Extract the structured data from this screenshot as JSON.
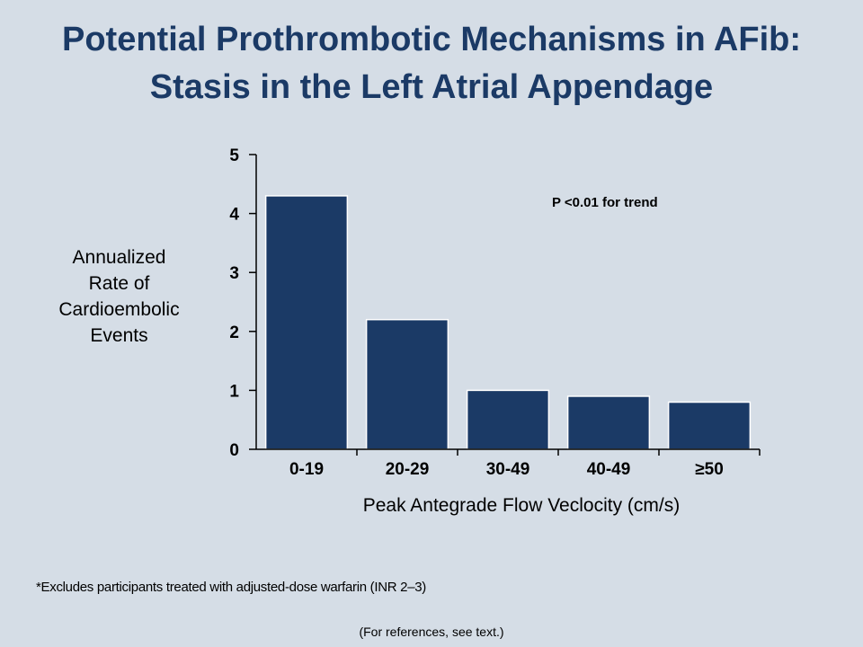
{
  "slide": {
    "title_line1": "Potential Prothrombotic Mechanisms in AFib:",
    "title_line2": "Stasis in the Left Atrial Appendage",
    "y_axis_label_lines": [
      "Annualized",
      "Rate of",
      "Cardioembolic",
      "Events"
    ],
    "x_axis_label": "Peak Antegrade Flow Veclocity (cm/s)",
    "annotation": "P <0.01 for trend",
    "footnote": "*Excludes participants treated with adjusted-dose warfarin (INR 2–3)",
    "references": "(For references, see text.)"
  },
  "chart_data": {
    "type": "bar",
    "categories": [
      "0-19",
      "20-29",
      "30-49",
      "40-49",
      "≥50"
    ],
    "values": [
      4.3,
      2.2,
      1.0,
      0.9,
      0.8
    ],
    "xlabel": "Peak Antegrade Flow Veclocity (cm/s)",
    "ylabel": "Annualized Rate of Cardioembolic Events",
    "ylim": [
      0,
      5
    ],
    "yticks": [
      0,
      1,
      2,
      3,
      4,
      5
    ],
    "annotation": "P <0.01 for trend",
    "bar_color": "#1b3a66",
    "grid": false,
    "legend": "none"
  }
}
